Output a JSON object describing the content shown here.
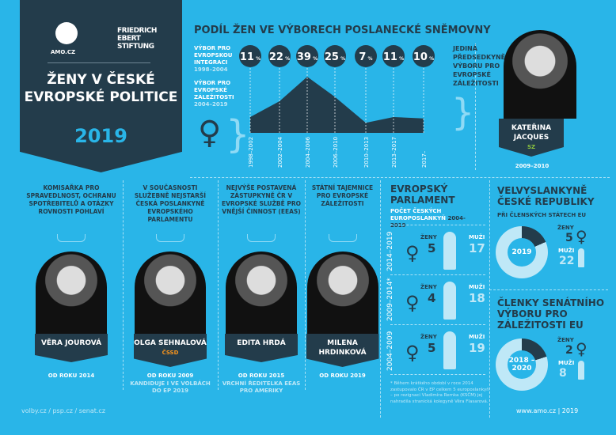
{
  "header": {
    "amo_logo": "AMO.CZ",
    "fes_logo": "FRIEDRICH EBERT STIFTUNG",
    "title": "ŽENY V ČESKÉ EVROPSKÉ POLITICE",
    "year": "2019"
  },
  "chart_data": {
    "type": "area",
    "title": "PODÍL ŽEN VE VÝBORECH POSLANECKÉ SNĚMOVNY",
    "categories": [
      "1998–2002",
      "2002–2004",
      "2004–2006",
      "2006–2010",
      "2010–2013",
      "2013–2017",
      "2017–"
    ],
    "values": [
      11,
      22,
      39,
      25,
      7,
      11,
      10
    ],
    "unit": "%",
    "legend": [
      {
        "name": "VÝBOR PRO EVROPSKOU INTEGRACI",
        "period": "1998–2004"
      },
      {
        "name": "VÝBOR PRO EVROPSKÉ ZÁLEŽITOSTI",
        "period": "2004–2019"
      }
    ],
    "colors": {
      "area": "#233c4b",
      "background": "#29b5e8"
    }
  },
  "chair": {
    "caption": "JEDINÁ PŘEDSEDKYNĚ VÝBORU PRO EVROPSKÉ ZÁLEŽITOSTI",
    "name": "KATEŘINA JACQUES",
    "party": "SZ",
    "period": "2009–2010"
  },
  "profiles": [
    {
      "desc": "KOMISAŘKA PRO SPRAVEDLNOST, OCHRANU SPOTŘEBITELŮ A OTÁZKY ROVNOSTI POHLAVÍ",
      "name": "VĚRA JOUROVÁ",
      "party": "",
      "since": "OD ROKU 2014",
      "note": ""
    },
    {
      "desc": "V SOUČASNOSTI SLUŽEBNĚ NEJSTARŠÍ ČESKÁ POSLANKYNĚ EVROPSKÉHO PARLAMENTU",
      "name": "OLGA SEHNALOVÁ",
      "party": "ČSSD",
      "since": "OD ROKU 2009",
      "note": "KANDIDUJE I VE VOLBÁCH DO EP 2019"
    },
    {
      "desc": "NEJVÝŠE POSTAVENÁ ZÁSTUPKYNĚ ČR V EVROPSKÉ SLUŽBĚ PRO VNĚJŠÍ ČINNOST (EEAS)",
      "name": "EDITA HRDÁ",
      "party": "",
      "since": "OD ROKU 2015",
      "note": "VRCHNÍ ŘEDITELKA EEAS PRO AMERIKY"
    },
    {
      "desc": "STÁTNÍ TAJEMNICE PRO EVROPSKÉ ZÁLEŽITOSTI",
      "name": "MILENA HRDINKOVÁ",
      "party": "",
      "since": "OD ROKU 2019",
      "note": ""
    }
  ],
  "ep": {
    "title": "EVROPSKÝ PARLAMENT",
    "subtitle": "POČET ČESKÝCH EUROPOSLANKYŇ",
    "period": "2004-2019",
    "women_label": "ŽENY",
    "men_label": "MUŽI",
    "rows": [
      {
        "period": "2014–2019",
        "women": "5",
        "men": "17"
      },
      {
        "period": "2009–2014*",
        "women": "4",
        "men": "18"
      },
      {
        "period": "2004–2009",
        "women": "5",
        "men": "19"
      }
    ],
    "footnote": "* Během krátkého období v roce 2014 zastupovalo ČR v EP celkem 5 europoslankyň – po rezignaci Vladimíra Remka (KSČM) jej nahradila stranická kolegyně Věra Flasarová."
  },
  "ambassadors": {
    "title": "VELVYSLANKYNĚ ČESKÉ REPUBLIKY",
    "subtitle": "PŘI ČLENSKÝCH STÁTECH EU",
    "year": "2019",
    "women_label": "ŽENY",
    "women": 5,
    "men_label": "MUŽI",
    "men": 22
  },
  "senate": {
    "title": "ČLENKY SENÁTNÍHO VÝBORU PRO ZÁLEŽITOSTI EU",
    "year": "2018 – 2020",
    "women_label": "ŽENY",
    "women": 2,
    "men_label": "MUŽI",
    "men": 8
  },
  "footer": {
    "sources": "volby.cz / psp.cz / senat.cz",
    "site": "www.amo.cz | 2019"
  }
}
